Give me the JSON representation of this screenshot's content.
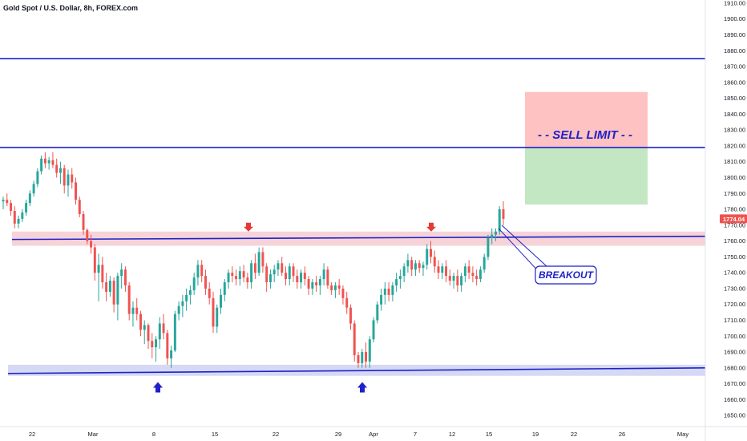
{
  "chart_data": {
    "type": "candlestick",
    "title": "Gold Spot / U.S. Dollar, 8h, FOREX.com",
    "ylim": [
      1643,
      1912
    ],
    "yticks": [
      1650,
      1660,
      1670,
      1680,
      1690,
      1700,
      1710,
      1720,
      1730,
      1740,
      1750,
      1760,
      1770,
      1780,
      1790,
      1800,
      1810,
      1820,
      1830,
      1840,
      1850,
      1860,
      1870,
      1880,
      1890,
      1900,
      1910
    ],
    "xticks": [
      "22",
      "Mar",
      "8",
      "15",
      "22",
      "29",
      "Apr",
      "7",
      "12",
      "15",
      "19",
      "22",
      "26",
      "May"
    ],
    "current_price": "1774.04",
    "candles": [
      [
        1785,
        1788,
        1780,
        1786
      ],
      [
        1786,
        1790,
        1782,
        1784
      ],
      [
        1784,
        1786,
        1776,
        1779
      ],
      [
        1779,
        1782,
        1768,
        1771
      ],
      [
        1771,
        1776,
        1768,
        1774
      ],
      [
        1774,
        1780,
        1772,
        1778
      ],
      [
        1778,
        1786,
        1776,
        1784
      ],
      [
        1784,
        1792,
        1782,
        1790
      ],
      [
        1790,
        1798,
        1788,
        1796
      ],
      [
        1796,
        1806,
        1794,
        1804
      ],
      [
        1804,
        1814,
        1802,
        1812
      ],
      [
        1812,
        1816,
        1806,
        1809
      ],
      [
        1809,
        1813,
        1805,
        1811
      ],
      [
        1811,
        1816,
        1806,
        1808
      ],
      [
        1808,
        1812,
        1800,
        1803
      ],
      [
        1803,
        1810,
        1796,
        1806
      ],
      [
        1806,
        1808,
        1790,
        1795
      ],
      [
        1795,
        1805,
        1788,
        1802
      ],
      [
        1802,
        1806,
        1793,
        1797
      ],
      [
        1797,
        1800,
        1783,
        1786
      ],
      [
        1786,
        1788,
        1775,
        1777
      ],
      [
        1777,
        1779,
        1764,
        1767
      ],
      [
        1767,
        1768,
        1758,
        1760
      ],
      [
        1760,
        1764,
        1752,
        1756
      ],
      [
        1756,
        1758,
        1735,
        1740
      ],
      [
        1740,
        1752,
        1722,
        1745
      ],
      [
        1745,
        1750,
        1730,
        1734
      ],
      [
        1734,
        1740,
        1722,
        1728
      ],
      [
        1728,
        1738,
        1725,
        1735
      ],
      [
        1735,
        1737,
        1715,
        1720
      ],
      [
        1720,
        1740,
        1710,
        1738
      ],
      [
        1738,
        1746,
        1730,
        1742
      ],
      [
        1742,
        1744,
        1728,
        1732
      ],
      [
        1732,
        1734,
        1710,
        1714
      ],
      [
        1714,
        1722,
        1706,
        1718
      ],
      [
        1718,
        1724,
        1710,
        1714
      ],
      [
        1714,
        1716,
        1700,
        1704
      ],
      [
        1704,
        1710,
        1695,
        1707
      ],
      [
        1707,
        1708,
        1692,
        1697
      ],
      [
        1697,
        1702,
        1686,
        1693
      ],
      [
        1693,
        1700,
        1684,
        1698
      ],
      [
        1698,
        1712,
        1692,
        1708
      ],
      [
        1708,
        1714,
        1698,
        1702
      ],
      [
        1702,
        1704,
        1682,
        1686
      ],
      [
        1686,
        1694,
        1680,
        1691
      ],
      [
        1691,
        1716,
        1690,
        1714
      ],
      [
        1714,
        1722,
        1710,
        1719
      ],
      [
        1719,
        1726,
        1712,
        1722
      ],
      [
        1722,
        1730,
        1716,
        1726
      ],
      [
        1726,
        1732,
        1720,
        1729
      ],
      [
        1729,
        1740,
        1726,
        1737
      ],
      [
        1737,
        1748,
        1732,
        1745
      ],
      [
        1745,
        1748,
        1734,
        1738
      ],
      [
        1738,
        1742,
        1726,
        1730
      ],
      [
        1730,
        1734,
        1720,
        1724
      ],
      [
        1724,
        1728,
        1702,
        1706
      ],
      [
        1706,
        1720,
        1702,
        1718
      ],
      [
        1718,
        1730,
        1714,
        1726
      ],
      [
        1726,
        1736,
        1722,
        1734
      ],
      [
        1734,
        1742,
        1730,
        1740
      ],
      [
        1740,
        1744,
        1734,
        1738
      ],
      [
        1738,
        1742,
        1732,
        1736
      ],
      [
        1736,
        1744,
        1732,
        1741
      ],
      [
        1741,
        1745,
        1734,
        1737
      ],
      [
        1737,
        1740,
        1730,
        1734
      ],
      [
        1734,
        1748,
        1730,
        1746
      ],
      [
        1746,
        1752,
        1736,
        1740
      ],
      [
        1740,
        1756,
        1738,
        1753
      ],
      [
        1753,
        1756,
        1740,
        1744
      ],
      [
        1744,
        1746,
        1728,
        1734
      ],
      [
        1734,
        1742,
        1730,
        1739
      ],
      [
        1739,
        1745,
        1734,
        1742
      ],
      [
        1742,
        1748,
        1738,
        1746
      ],
      [
        1746,
        1750,
        1738,
        1740
      ],
      [
        1740,
        1744,
        1732,
        1736
      ],
      [
        1736,
        1746,
        1732,
        1744
      ],
      [
        1744,
        1746,
        1734,
        1738
      ],
      [
        1738,
        1742,
        1730,
        1734
      ],
      [
        1734,
        1742,
        1730,
        1740
      ],
      [
        1740,
        1744,
        1732,
        1736
      ],
      [
        1736,
        1738,
        1726,
        1730
      ],
      [
        1730,
        1736,
        1726,
        1734
      ],
      [
        1734,
        1738,
        1728,
        1732
      ],
      [
        1732,
        1738,
        1726,
        1736
      ],
      [
        1736,
        1746,
        1732,
        1742
      ],
      [
        1742,
        1744,
        1730,
        1732
      ],
      [
        1732,
        1734,
        1726,
        1729
      ],
      [
        1729,
        1734,
        1724,
        1732
      ],
      [
        1732,
        1736,
        1726,
        1730
      ],
      [
        1730,
        1732,
        1720,
        1724
      ],
      [
        1724,
        1728,
        1714,
        1718
      ],
      [
        1718,
        1720,
        1704,
        1708
      ],
      [
        1708,
        1710,
        1684,
        1688
      ],
      [
        1688,
        1690,
        1680,
        1683
      ],
      [
        1683,
        1692,
        1680,
        1690
      ],
      [
        1690,
        1696,
        1680,
        1684
      ],
      [
        1684,
        1700,
        1680,
        1698
      ],
      [
        1698,
        1712,
        1696,
        1710
      ],
      [
        1710,
        1722,
        1708,
        1720
      ],
      [
        1720,
        1730,
        1716,
        1726
      ],
      [
        1726,
        1734,
        1720,
        1730
      ],
      [
        1730,
        1734,
        1722,
        1726
      ],
      [
        1726,
        1734,
        1722,
        1732
      ],
      [
        1732,
        1740,
        1728,
        1736
      ],
      [
        1736,
        1742,
        1730,
        1738
      ],
      [
        1738,
        1746,
        1734,
        1744
      ],
      [
        1744,
        1752,
        1740,
        1748
      ],
      [
        1748,
        1750,
        1738,
        1742
      ],
      [
        1742,
        1748,
        1738,
        1746
      ],
      [
        1746,
        1748,
        1740,
        1743
      ],
      [
        1743,
        1747,
        1738,
        1745
      ],
      [
        1745,
        1758,
        1742,
        1755
      ],
      [
        1755,
        1760,
        1746,
        1750
      ],
      [
        1750,
        1754,
        1740,
        1744
      ],
      [
        1744,
        1748,
        1736,
        1740
      ],
      [
        1740,
        1746,
        1736,
        1744
      ],
      [
        1744,
        1748,
        1734,
        1738
      ],
      [
        1738,
        1742,
        1732,
        1735
      ],
      [
        1735,
        1740,
        1730,
        1738
      ],
      [
        1738,
        1742,
        1728,
        1732
      ],
      [
        1732,
        1740,
        1728,
        1738
      ],
      [
        1738,
        1746,
        1734,
        1744
      ],
      [
        1744,
        1748,
        1736,
        1740
      ],
      [
        1740,
        1744,
        1734,
        1738
      ],
      [
        1738,
        1742,
        1732,
        1736
      ],
      [
        1736,
        1744,
        1734,
        1742
      ],
      [
        1742,
        1752,
        1740,
        1750
      ],
      [
        1750,
        1764,
        1748,
        1762
      ],
      [
        1762,
        1768,
        1758,
        1764
      ],
      [
        1764,
        1768,
        1760,
        1766
      ],
      [
        1766,
        1782,
        1764,
        1780
      ],
      [
        1780,
        1785,
        1770,
        1774
      ]
    ],
    "lines": [
      {
        "kind": "horizontal",
        "y": 1875,
        "x0": 0,
        "x1": 880
      },
      {
        "kind": "horizontal",
        "y": 1819,
        "x0": 0,
        "x1": 880
      },
      {
        "kind": "trend",
        "x0": 15,
        "y0": 1761,
        "x1": 880,
        "y1": 1763
      },
      {
        "kind": "trend",
        "x0": 10,
        "y0": 1676.5,
        "x1": 880,
        "y1": 1680
      }
    ],
    "zones": [
      {
        "name": "resistance-zone",
        "y0": 1757,
        "y1": 1766,
        "color": "#f6d3d8"
      },
      {
        "name": "support-zone",
        "y0": 1675,
        "y1": 1682,
        "color": "#d5d9f4"
      },
      {
        "name": "stop-zone",
        "y0": 1819,
        "y1": 1854,
        "color": "#ffc2c2"
      },
      {
        "name": "target-zone",
        "y0": 1783,
        "y1": 1819,
        "color": "#c3e6c3"
      }
    ],
    "arrows_down": [
      1768,
      1768
    ],
    "arrows_up": [
      1668,
      1668
    ],
    "annotations": {
      "sell_limit": "- - SELL LIMIT - -",
      "breakout": "BREAKOUT"
    },
    "colors": {
      "up": "#26a69a",
      "down": "#ef5350",
      "line": "#1e22c8",
      "badge": "#ef5350"
    }
  }
}
